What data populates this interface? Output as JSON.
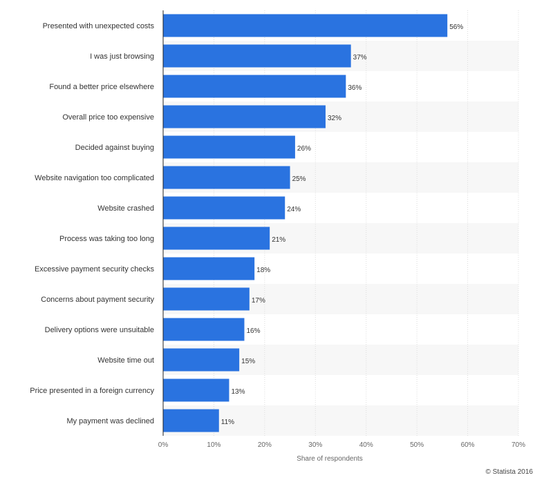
{
  "chart_data": {
    "type": "bar",
    "orientation": "horizontal",
    "categories": [
      "Presented with unexpected costs",
      "I was just browsing",
      "Found a better price elsewhere",
      "Overall price too expensive",
      "Decided against buying",
      "Website navigation too complicated",
      "Website crashed",
      "Process was taking too long",
      "Excessive payment security checks",
      "Concerns about payment security",
      "Delivery options were unsuitable",
      "Website time out",
      "Price presented in a foreign currency",
      "My payment was declined"
    ],
    "values": [
      56,
      37,
      36,
      32,
      26,
      25,
      24,
      21,
      18,
      17,
      16,
      15,
      13,
      11
    ],
    "value_labels": [
      "56%",
      "37%",
      "36%",
      "32%",
      "26%",
      "25%",
      "24%",
      "21%",
      "18%",
      "17%",
      "16%",
      "15%",
      "13%",
      "11%"
    ],
    "x_ticks": [
      0,
      10,
      20,
      30,
      40,
      50,
      60,
      70
    ],
    "x_tick_labels": [
      "0%",
      "10%",
      "20%",
      "30%",
      "40%",
      "50%",
      "60%",
      "70%"
    ],
    "xlim": [
      0,
      70
    ],
    "xlabel": "Share of respondents",
    "ylabel": "",
    "grid": true
  },
  "colors": {
    "bar": "#2a73e0",
    "band": "#f7f7f7",
    "grid": "#dcdcdc",
    "axis": "#222222"
  },
  "credit": "© Statista 2016"
}
